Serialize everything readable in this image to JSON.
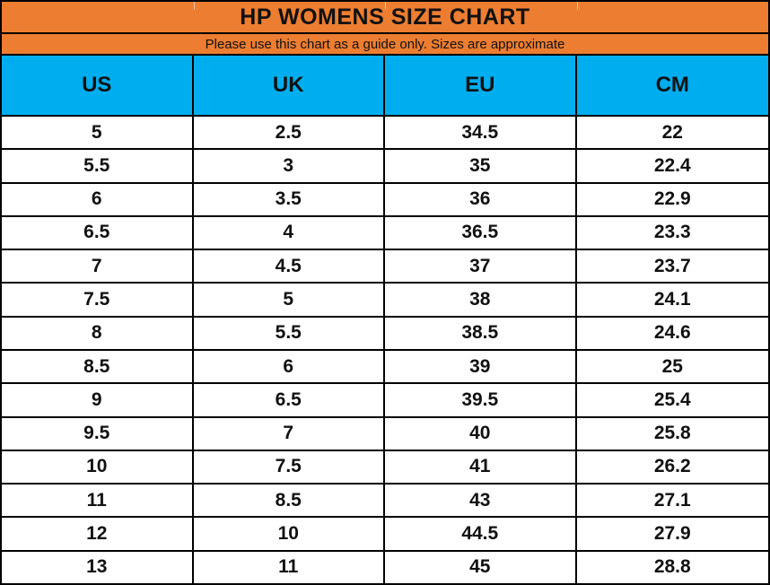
{
  "header": {
    "title": "HP WOMENS SIZE CHART",
    "subtitle": "Please use this chart as a guide only. Sizes are approximate"
  },
  "colors": {
    "band_orange": "#ED7D31",
    "header_blue": "#00AEEF",
    "grid_black": "#000000",
    "row_white": "#FFFFFF",
    "text_black": "#111111"
  },
  "chart_data": {
    "type": "table",
    "title": "HP WOMENS SIZE CHART",
    "subtitle": "Please use this chart as a guide only. Sizes are approximate",
    "columns": [
      "US",
      "UK",
      "EU",
      "CM"
    ],
    "rows": [
      [
        "5",
        "2.5",
        "34.5",
        "22"
      ],
      [
        "5.5",
        "3",
        "35",
        "22.4"
      ],
      [
        "6",
        "3.5",
        "36",
        "22.9"
      ],
      [
        "6.5",
        "4",
        "36.5",
        "23.3"
      ],
      [
        "7",
        "4.5",
        "37",
        "23.7"
      ],
      [
        "7.5",
        "5",
        "38",
        "24.1"
      ],
      [
        "8",
        "5.5",
        "38.5",
        "24.6"
      ],
      [
        "8.5",
        "6",
        "39",
        "25"
      ],
      [
        "9",
        "6.5",
        "39.5",
        "25.4"
      ],
      [
        "9.5",
        "7",
        "40",
        "25.8"
      ],
      [
        "10",
        "7.5",
        "41",
        "26.2"
      ],
      [
        "11",
        "8.5",
        "43",
        "27.1"
      ],
      [
        "12",
        "10",
        "44.5",
        "27.9"
      ],
      [
        "13",
        "11",
        "45",
        "28.8"
      ]
    ]
  }
}
